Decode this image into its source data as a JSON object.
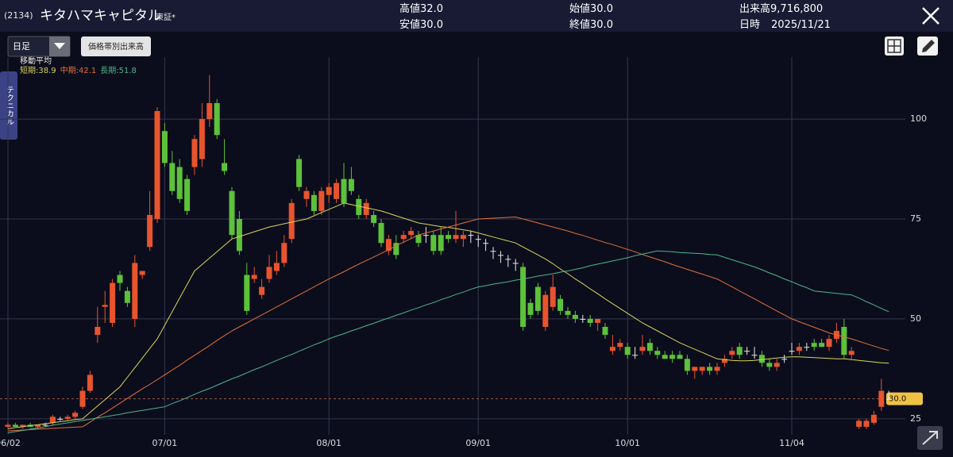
{
  "header": {
    "code": "(2134)",
    "name": "キタハマキャピタル",
    "market": "東証*",
    "quotes": [
      {
        "label": "高値",
        "value": "32.0"
      },
      {
        "label": "安値",
        "value": "30.0"
      },
      {
        "label": "始値",
        "value": "30.0"
      },
      {
        "label": "終値",
        "value": "30.0"
      },
      {
        "label": "出来高",
        "value": "9,716,800"
      },
      {
        "label": "日時",
        "value": "2025/11/21"
      }
    ]
  },
  "toolbar": {
    "period": "日足",
    "volume_button": "価格帯別出来高",
    "side_tab": "テクニカル"
  },
  "chart_data": {
    "type": "candlestick",
    "legend_title": "移動平均",
    "legend_separator": ":",
    "up_color": "#e8542e",
    "down_color": "#5cc23a",
    "flat_color": "#e8e8e8",
    "categories": [
      "06/02",
      null,
      null,
      null,
      null,
      null,
      null,
      null,
      null,
      null,
      null,
      null,
      null,
      null,
      null,
      null,
      null,
      null,
      null,
      null,
      null,
      "07/01",
      null,
      null,
      null,
      null,
      null,
      null,
      null,
      null,
      null,
      null,
      null,
      null,
      null,
      null,
      null,
      null,
      null,
      null,
      null,
      null,
      null,
      "08/01",
      null,
      null,
      null,
      null,
      null,
      null,
      null,
      null,
      null,
      null,
      null,
      null,
      null,
      null,
      null,
      null,
      null,
      null,
      null,
      "09/01",
      null,
      null,
      null,
      null,
      null,
      null,
      null,
      null,
      null,
      null,
      null,
      null,
      null,
      null,
      null,
      null,
      null,
      null,
      null,
      "10/01",
      null,
      null,
      null,
      null,
      null,
      null,
      null,
      null,
      null,
      null,
      null,
      null,
      null,
      null,
      null,
      null,
      null,
      null,
      null,
      null,
      null,
      "11/04",
      null,
      null,
      null,
      null,
      null,
      null,
      null,
      null,
      null,
      null,
      null,
      null,
      null
    ],
    "open": [
      23,
      23.5,
      23,
      23.5,
      23,
      23.5,
      24,
      25,
      25,
      25.5,
      28,
      32,
      46,
      53,
      49,
      61,
      57,
      50,
      61,
      68,
      75,
      97,
      89,
      88,
      85,
      88,
      90,
      100,
      104,
      89,
      82,
      75,
      61,
      60,
      56,
      60,
      62,
      64,
      70,
      90,
      80,
      81,
      77,
      81,
      80,
      85,
      85,
      80,
      76,
      76,
      74,
      67,
      69,
      70,
      71,
      71,
      71,
      71,
      71,
      71,
      70,
      70,
      71,
      70,
      69,
      67,
      66,
      65,
      64,
      63,
      54,
      58,
      48,
      53,
      55,
      52,
      51,
      50,
      50,
      49,
      48,
      42,
      43,
      43,
      41,
      42,
      44,
      42,
      41,
      41,
      41,
      40,
      37,
      37,
      38,
      37,
      39,
      41,
      43,
      42,
      41,
      41,
      39,
      38,
      40,
      42,
      42,
      43,
      44,
      44,
      43,
      45,
      48,
      41,
      23,
      23,
      24,
      28,
      30
    ],
    "high": [
      24,
      24,
      23.5,
      24,
      23.5,
      24,
      26,
      25.5,
      26,
      27,
      33,
      37,
      53,
      57,
      60,
      62,
      58,
      66,
      62,
      82,
      103,
      99,
      92,
      90,
      86,
      96,
      104,
      111,
      105,
      95,
      83,
      77,
      64,
      63,
      60,
      66,
      67,
      71,
      80,
      91,
      83,
      82,
      83,
      84,
      85,
      89,
      88,
      81,
      80,
      77,
      75,
      71,
      71,
      72,
      73,
      72,
      73,
      72,
      73,
      72,
      77,
      72,
      72,
      71,
      70,
      68,
      67,
      66,
      65,
      64,
      55,
      59,
      57,
      61,
      56,
      53,
      52,
      51,
      51,
      50,
      49,
      46,
      45,
      44,
      43,
      46,
      45,
      43,
      42,
      42,
      42,
      41,
      38,
      38,
      39,
      39,
      41,
      43,
      44,
      43,
      43,
      42,
      40,
      40,
      41,
      44,
      44,
      44,
      45,
      45,
      46,
      49,
      50,
      43,
      25,
      25,
      27,
      35,
      32
    ],
    "low": [
      22.5,
      23,
      22.5,
      23,
      22.5,
      23,
      23.5,
      24.5,
      24.5,
      25,
      27.5,
      31.5,
      44,
      49,
      48,
      57,
      53,
      48,
      60,
      67,
      74,
      88,
      81,
      79,
      76,
      86,
      88,
      98,
      95,
      86,
      70,
      66,
      51,
      59,
      55,
      59,
      61,
      63,
      69,
      82,
      78,
      76,
      76,
      79,
      79,
      78,
      81,
      75,
      75,
      73,
      68,
      66,
      65,
      69,
      70,
      68,
      69,
      66,
      66,
      69,
      69,
      68,
      69,
      68,
      67,
      65,
      64,
      63,
      62,
      47,
      50,
      51,
      47,
      52,
      51,
      50,
      49,
      49,
      48,
      47,
      45,
      41,
      42,
      40,
      40,
      41,
      41,
      40,
      40,
      39,
      40,
      36,
      35,
      36,
      36,
      36,
      38,
      40,
      40,
      41,
      40,
      38,
      37,
      37,
      39,
      41,
      41,
      42,
      42,
      43,
      42,
      44,
      40,
      40,
      22.5,
      22.5,
      23.5,
      27,
      30
    ],
    "close": [
      23.5,
      23,
      23.5,
      23,
      23.5,
      23.5,
      25.5,
      25,
      25.5,
      26.5,
      32,
      36,
      48,
      53.5,
      59,
      59,
      54,
      64,
      62,
      76,
      102,
      89,
      82,
      80,
      77,
      95,
      100,
      104,
      96,
      87,
      71,
      67,
      52,
      61,
      58,
      63,
      64,
      69,
      79,
      83,
      82,
      77,
      82,
      83,
      84,
      79,
      82,
      76,
      79,
      74,
      69,
      70,
      66,
      71,
      72,
      69,
      71,
      67,
      67,
      70,
      71,
      71,
      71,
      70,
      69,
      67,
      66,
      65,
      64,
      48,
      51,
      52,
      56,
      58,
      52,
      51,
      50,
      50,
      49,
      50,
      46,
      43,
      44,
      41,
      41,
      43,
      42,
      41,
      40,
      40,
      40,
      37,
      38,
      38,
      37,
      38,
      40,
      42,
      41,
      42,
      41,
      39,
      38,
      39,
      40,
      42,
      43,
      43,
      43,
      43,
      45,
      47,
      41,
      42,
      24.5,
      24.5,
      26,
      32,
      30
    ],
    "series": [
      {
        "name": "短期",
        "color": "#d9d45a",
        "values": [
          22.5,
          22.8,
          23,
          23.3,
          23.5,
          23.8,
          24,
          24.3,
          24.5,
          24.8,
          25,
          26.6,
          28.2,
          29.8,
          31.4,
          33,
          35.4,
          37.8,
          40.2,
          42.6,
          45,
          48.4,
          51.8,
          55.2,
          58.6,
          62,
          63.6,
          65.2,
          66.8,
          68.4,
          70,
          70.6,
          71.2,
          71.8,
          72.4,
          73,
          73.4,
          73.8,
          74.2,
          74.6,
          75,
          75.8,
          76.6,
          77.4,
          78.2,
          79,
          78.6,
          78.2,
          77.8,
          77.4,
          77,
          76.4,
          75.8,
          75.2,
          74.6,
          74,
          73.7,
          73.4,
          73.1,
          72.9,
          72.6,
          72.3,
          72,
          71.5,
          71,
          70.5,
          70,
          69.5,
          69,
          68,
          67,
          66,
          65,
          63.8,
          62.5,
          61.3,
          60,
          58.8,
          57.5,
          56.3,
          55,
          53.8,
          52.6,
          51.4,
          50.2,
          49,
          48,
          47,
          46,
          45,
          44,
          43.2,
          42.4,
          41.6,
          40.8,
          40,
          39.8,
          39.6,
          39.5,
          39.5,
          39.6,
          39.8,
          40,
          40.2,
          40.4,
          40.5,
          40.5,
          40.4,
          40.3,
          40.2,
          40.1,
          40,
          40,
          39.8,
          39.6,
          39.4,
          39.2,
          39,
          38.9
        ]
      },
      {
        "name": "中期",
        "color": "#e0703a",
        "values": [
          22,
          22.1,
          22.2,
          22.3,
          22.4,
          22.5,
          22.6,
          22.7,
          22.8,
          22.9,
          23,
          24.2,
          25.4,
          26.5,
          27.7,
          28.9,
          30.1,
          31.3,
          32.5,
          33.6,
          34.8,
          36,
          37.2,
          38.4,
          39.7,
          40.9,
          42.1,
          43.3,
          44.6,
          45.8,
          47,
          48,
          49,
          50,
          51,
          52,
          53,
          54,
          55,
          56,
          57,
          58,
          59,
          60,
          60.9,
          61.8,
          62.8,
          63.7,
          64.6,
          65.5,
          66.4,
          67.3,
          68.3,
          69.2,
          70.1,
          71,
          71.5,
          72,
          72.5,
          73,
          73.5,
          74,
          74.5,
          75,
          75.1,
          75.2,
          75.3,
          75.4,
          75.5,
          75,
          74.5,
          74,
          73.5,
          73,
          72.5,
          72,
          71.4,
          70.9,
          70.3,
          69.7,
          69.1,
          68.6,
          68,
          67.4,
          66.8,
          66.1,
          65.5,
          64.9,
          64.3,
          63.6,
          63,
          62.4,
          61.8,
          61.2,
          60.6,
          60,
          59,
          58,
          57,
          56,
          55,
          54,
          53,
          52,
          51,
          50,
          49.3,
          48.6,
          47.9,
          47.2,
          46.5,
          46,
          45.5,
          45,
          44.4,
          43.8,
          43.2,
          42.6,
          42.1
        ]
      },
      {
        "name": "長期",
        "color": "#4fb58a",
        "values": [
          21.5,
          21.8,
          22.1,
          22.4,
          22.7,
          23,
          23.4,
          23.7,
          24,
          24.3,
          24.6,
          24.9,
          25.2,
          25.5,
          25.8,
          26.1,
          26.5,
          26.8,
          27.1,
          27.4,
          27.7,
          28,
          28.8,
          29.5,
          30.3,
          31.1,
          31.9,
          32.6,
          33.4,
          34.2,
          35,
          35.7,
          36.5,
          37.3,
          38,
          38.8,
          39.6,
          40.4,
          41.1,
          41.9,
          42.7,
          43.5,
          44.2,
          45,
          45.7,
          46.3,
          47,
          47.6,
          48.3,
          48.9,
          49.6,
          50.2,
          50.9,
          51.5,
          52.2,
          52.8,
          53.5,
          54.1,
          54.8,
          55.4,
          56.1,
          56.7,
          57.4,
          58,
          58.3,
          58.7,
          59,
          59.3,
          59.7,
          60,
          60.3,
          60.7,
          61,
          61.3,
          61.7,
          62,
          62.4,
          62.8,
          63.3,
          63.7,
          64.1,
          64.5,
          64.9,
          65.3,
          65.8,
          66.2,
          66.6,
          67,
          66.9,
          66.8,
          66.6,
          66.5,
          66.4,
          66.3,
          66.1,
          66,
          65.4,
          64.8,
          64.2,
          63.6,
          63,
          62.3,
          61.5,
          60.8,
          60,
          59.3,
          58.5,
          57.8,
          57,
          56.8,
          56.6,
          56.4,
          56.2,
          56,
          55.2,
          54.3,
          53.5,
          52.6,
          51.8
        ]
      }
    ],
    "ylim": [
      21,
      115.5
    ],
    "yticks": [
      25,
      50,
      75,
      100
    ],
    "grid": true,
    "current_price": 30,
    "current_price_label": "30.0"
  }
}
